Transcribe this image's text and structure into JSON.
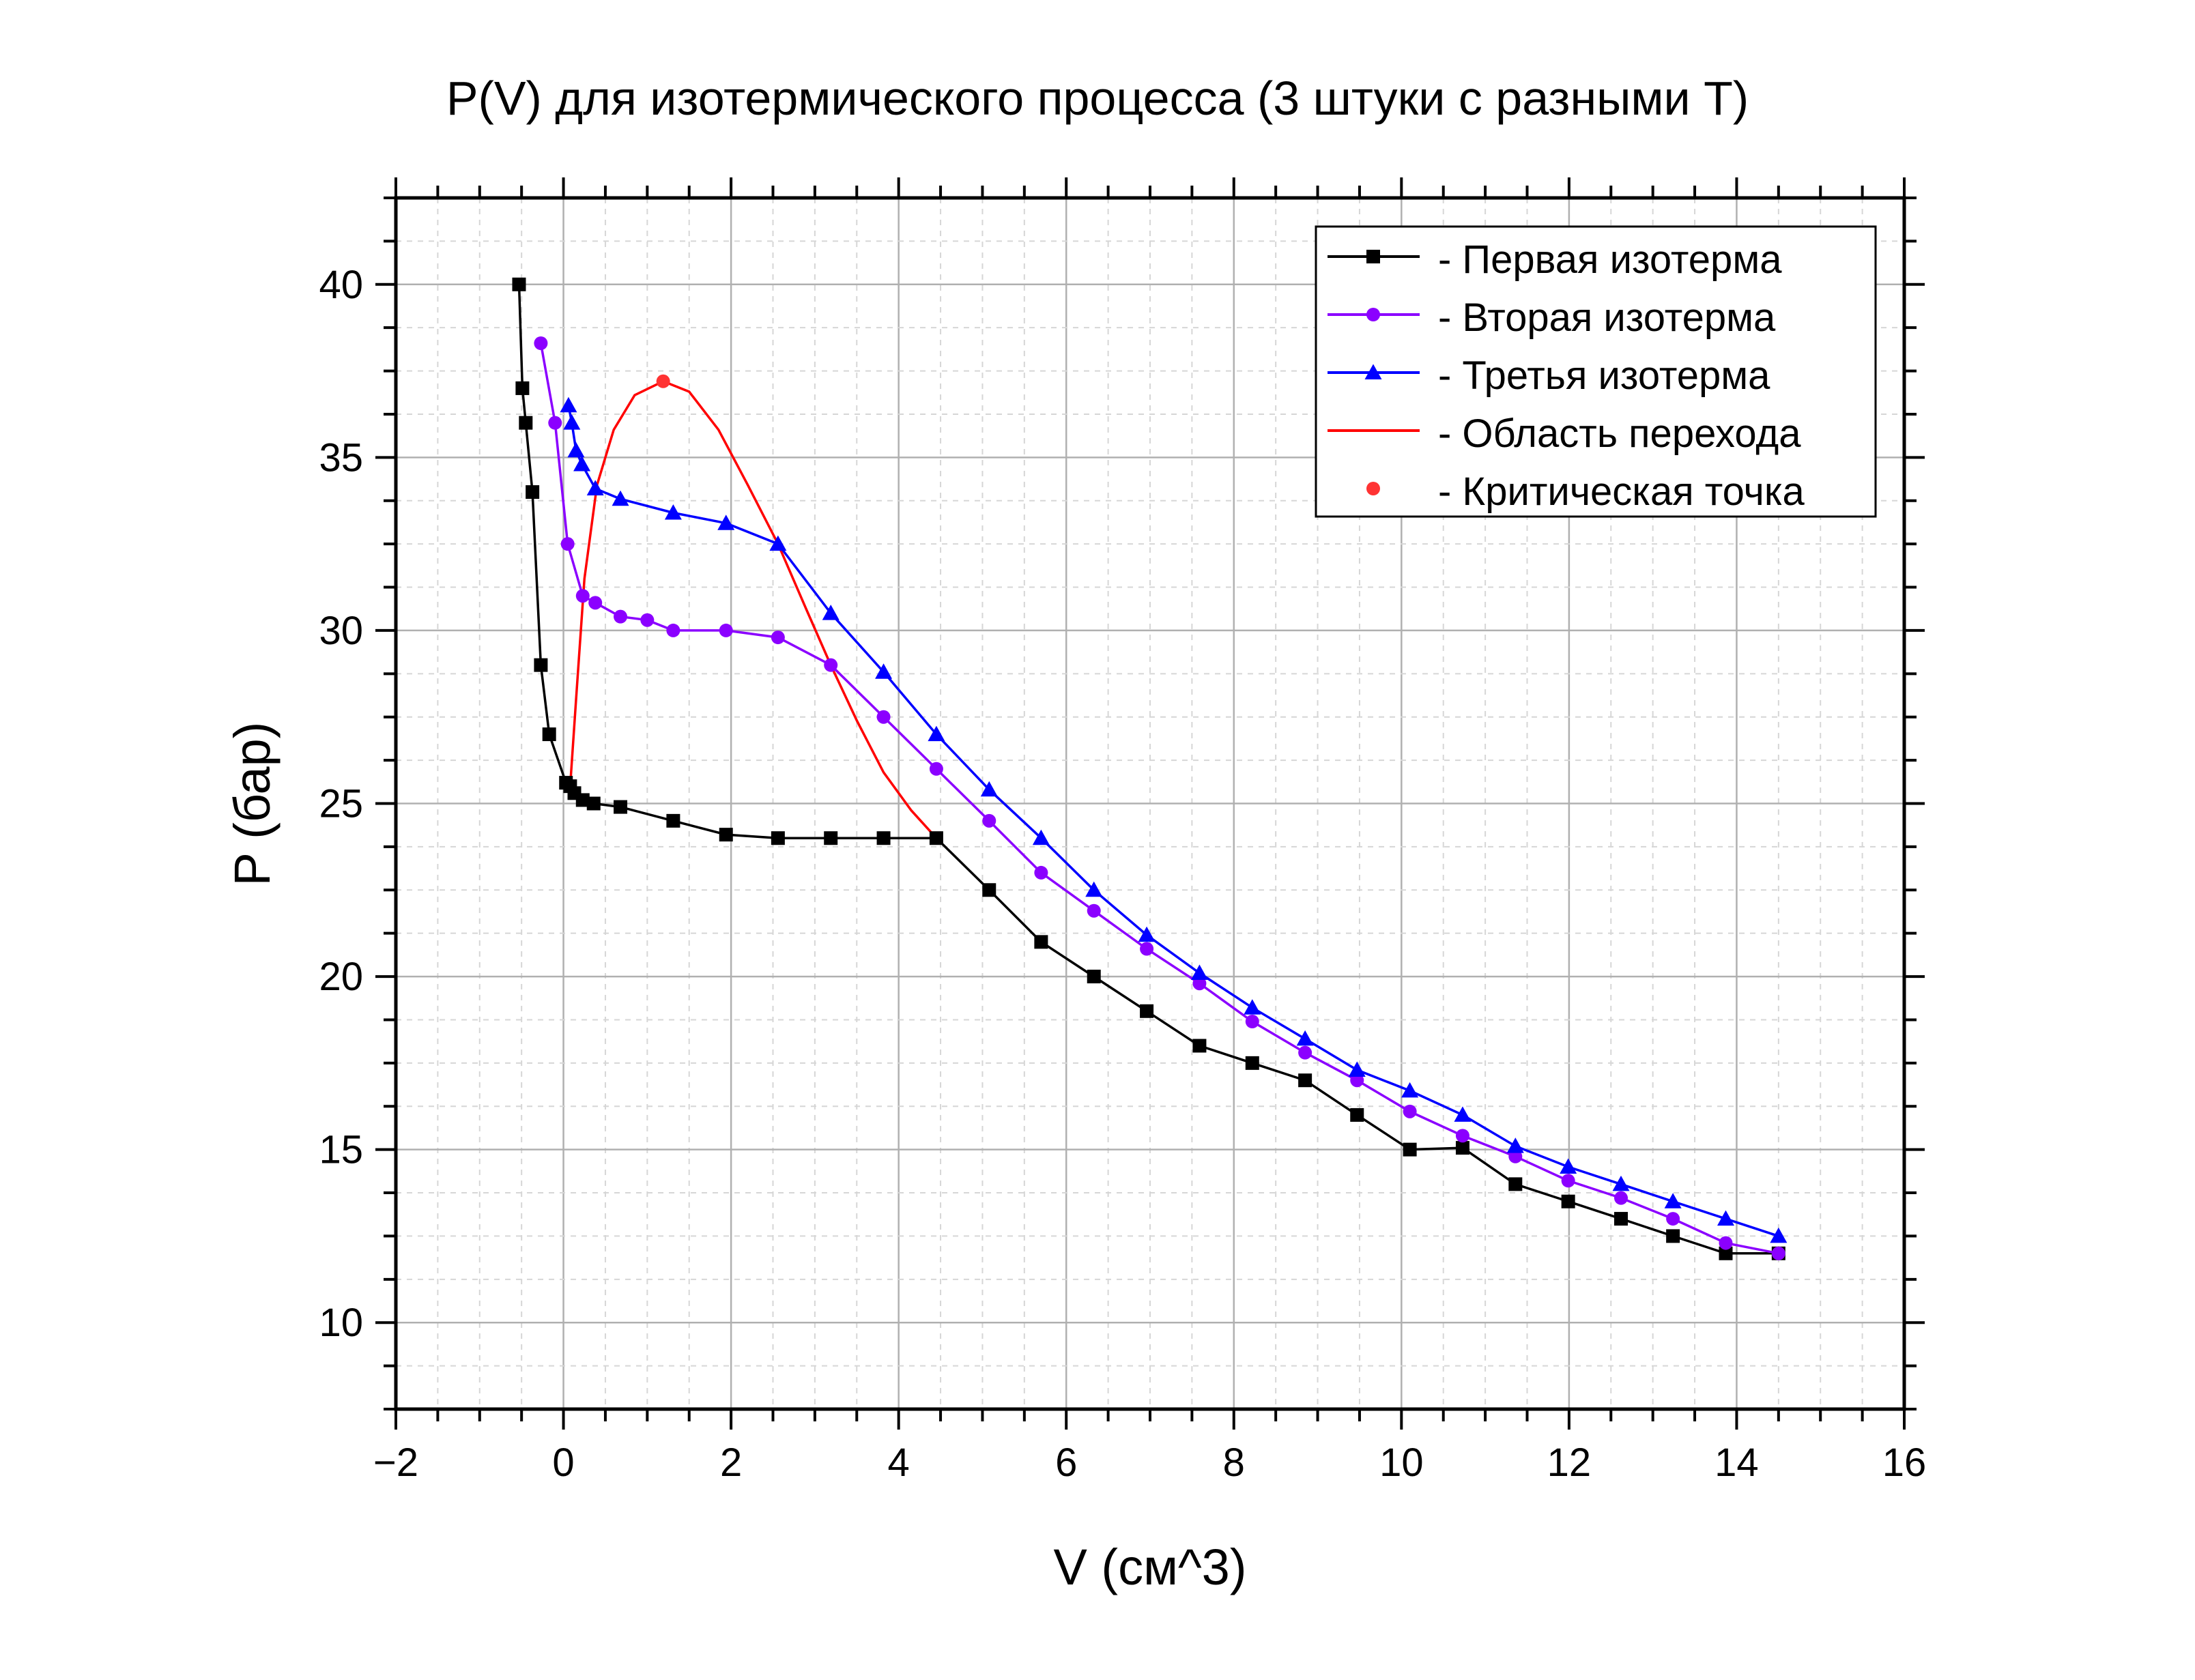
{
  "chart_data": {
    "type": "line",
    "title": "P(V) для изотермического процесса (3 штуки с разными T)",
    "xlabel": "V (см^3)",
    "ylabel": "P (бар)",
    "xlim": [
      -2,
      16
    ],
    "ylim": [
      7.5,
      42.5
    ],
    "xticks": [
      -2,
      0,
      2,
      4,
      6,
      8,
      10,
      12,
      14,
      16
    ],
    "xtick_labels": [
      "−2",
      "0",
      "2",
      "4",
      "6",
      "8",
      "10",
      "12",
      "14",
      "16"
    ],
    "yticks": [
      10,
      15,
      20,
      25,
      30,
      35,
      40
    ],
    "ytick_labels": [
      "10",
      "15",
      "20",
      "25",
      "30",
      "35",
      "40"
    ],
    "grid": true,
    "legend_position": "top-right",
    "series": [
      {
        "name": "- Первая изотерма",
        "color": "#000000",
        "marker": "square",
        "points": [
          [
            -0.53,
            40
          ],
          [
            -0.49,
            37
          ],
          [
            -0.45,
            36
          ],
          [
            -0.37,
            34
          ],
          [
            -0.27,
            29
          ],
          [
            -0.17,
            27
          ],
          [
            0.03,
            25.6
          ],
          [
            0.08,
            25.5
          ],
          [
            0.13,
            25.3
          ],
          [
            0.23,
            25.1
          ],
          [
            0.36,
            25.0
          ],
          [
            0.68,
            24.9
          ],
          [
            1.31,
            24.5
          ],
          [
            1.94,
            24.1
          ],
          [
            2.56,
            24.0
          ],
          [
            3.19,
            24.0
          ],
          [
            3.82,
            24.0
          ],
          [
            4.45,
            24.0
          ],
          [
            5.08,
            22.5
          ],
          [
            5.7,
            21.0
          ],
          [
            6.33,
            20.0
          ],
          [
            6.96,
            19.0
          ],
          [
            7.59,
            18.0
          ],
          [
            8.22,
            17.5
          ],
          [
            8.85,
            17.0
          ],
          [
            9.47,
            16.0
          ],
          [
            10.1,
            15.0
          ],
          [
            10.73,
            15.05
          ],
          [
            11.36,
            14.0
          ],
          [
            11.99,
            13.5
          ],
          [
            12.62,
            13.0
          ],
          [
            13.24,
            12.5
          ],
          [
            13.87,
            12.0
          ],
          [
            14.5,
            12.0
          ]
        ]
      },
      {
        "name": "- Вторая изотерма",
        "color": "#8B00FF",
        "marker": "circle",
        "points": [
          [
            -0.27,
            38.3
          ],
          [
            -0.1,
            36.0
          ],
          [
            0.05,
            32.5
          ],
          [
            0.23,
            31.0
          ],
          [
            0.38,
            30.8
          ],
          [
            0.68,
            30.4
          ],
          [
            1.0,
            30.3
          ],
          [
            1.31,
            30.0
          ],
          [
            1.94,
            30.0
          ],
          [
            2.56,
            29.8
          ],
          [
            3.19,
            29.0
          ],
          [
            3.82,
            27.5
          ],
          [
            4.45,
            26.0
          ],
          [
            5.08,
            24.5
          ],
          [
            5.7,
            23.0
          ],
          [
            6.33,
            21.9
          ],
          [
            6.96,
            20.8
          ],
          [
            7.59,
            19.8
          ],
          [
            8.22,
            18.7
          ],
          [
            8.85,
            17.8
          ],
          [
            9.47,
            17.0
          ],
          [
            10.1,
            16.1
          ],
          [
            10.73,
            15.4
          ],
          [
            11.36,
            14.8
          ],
          [
            11.99,
            14.1
          ],
          [
            12.62,
            13.6
          ],
          [
            13.24,
            13.0
          ],
          [
            13.87,
            12.3
          ],
          [
            14.5,
            12.0
          ]
        ]
      },
      {
        "name": "- Третья изотерма",
        "color": "#0000FF",
        "marker": "triangle",
        "points": [
          [
            0.06,
            36.5
          ],
          [
            0.1,
            36.0
          ],
          [
            0.15,
            35.2
          ],
          [
            0.22,
            34.8
          ],
          [
            0.38,
            34.1
          ],
          [
            0.68,
            33.8
          ],
          [
            1.31,
            33.4
          ],
          [
            1.94,
            33.1
          ],
          [
            2.56,
            32.5
          ],
          [
            3.19,
            30.5
          ],
          [
            3.82,
            28.8
          ],
          [
            4.45,
            27.0
          ],
          [
            5.08,
            25.4
          ],
          [
            5.7,
            24.0
          ],
          [
            6.33,
            22.5
          ],
          [
            6.96,
            21.2
          ],
          [
            7.59,
            20.1
          ],
          [
            8.22,
            19.1
          ],
          [
            8.85,
            18.2
          ],
          [
            9.47,
            17.3
          ],
          [
            10.1,
            16.7
          ],
          [
            10.73,
            16.0
          ],
          [
            11.36,
            15.1
          ],
          [
            11.99,
            14.5
          ],
          [
            12.62,
            14.0
          ],
          [
            13.24,
            13.5
          ],
          [
            13.87,
            13.0
          ],
          [
            14.5,
            12.5
          ]
        ]
      },
      {
        "name": "- Область перехода",
        "color": "#FF0000",
        "marker": "none",
        "points": [
          [
            0.08,
            25.5
          ],
          [
            0.15,
            28.0
          ],
          [
            0.25,
            31.5
          ],
          [
            0.4,
            34.2
          ],
          [
            0.6,
            35.8
          ],
          [
            0.85,
            36.8
          ],
          [
            1.19,
            37.2
          ],
          [
            1.5,
            36.9
          ],
          [
            1.85,
            35.8
          ],
          [
            2.2,
            34.2
          ],
          [
            2.56,
            32.5
          ],
          [
            2.9,
            30.6
          ],
          [
            3.19,
            29.0
          ],
          [
            3.5,
            27.4
          ],
          [
            3.82,
            25.9
          ],
          [
            4.15,
            24.8
          ],
          [
            4.45,
            24.0
          ]
        ]
      },
      {
        "name": "- Критическая точка",
        "color": "#FF3333",
        "marker": "circle",
        "line": false,
        "points": [
          [
            1.19,
            37.2
          ]
        ]
      }
    ]
  }
}
